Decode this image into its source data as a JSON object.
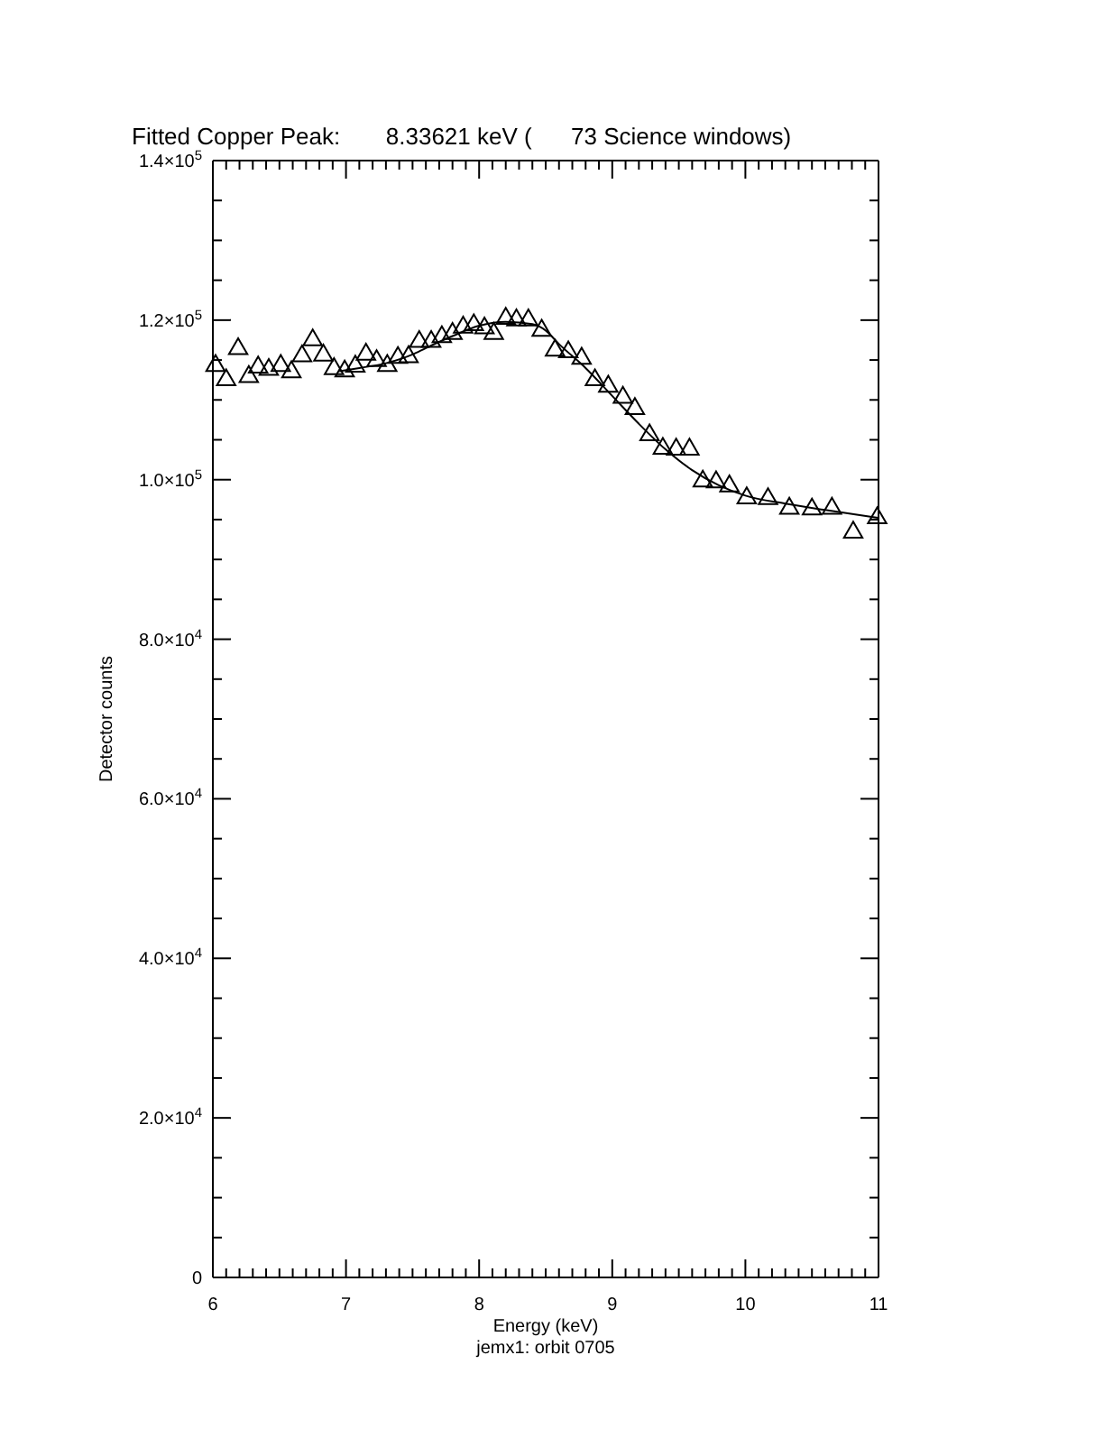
{
  "chart_data": {
    "type": "scatter",
    "title": "Fitted Copper Peak:       8.33621 keV (      73 Science windows)",
    "xlabel": "Energy (keV)",
    "ylabel": "Detector counts",
    "annotations": [
      "jemx1: orbit 0705"
    ],
    "xlim": [
      6,
      11
    ],
    "ylim": [
      0,
      140000
    ],
    "xticks": [
      6,
      {
        "value": 6.1,
        "label": null
      },
      {
        "value": 6.2,
        "label": null
      },
      {
        "value": 6.3,
        "label": null
      },
      {
        "value": 6.4,
        "label": null
      },
      {
        "value": 6.5,
        "label": null
      },
      {
        "value": 6.6,
        "label": null
      },
      {
        "value": 6.7,
        "label": null
      },
      {
        "value": 6.8,
        "label": null
      },
      {
        "value": 6.9,
        "label": null
      },
      7,
      {
        "value": 7.1,
        "label": null
      },
      {
        "value": 7.2,
        "label": null
      },
      {
        "value": 7.3,
        "label": null
      },
      {
        "value": 7.4,
        "label": null
      },
      {
        "value": 7.5,
        "label": null
      },
      {
        "value": 7.6,
        "label": null
      },
      {
        "value": 7.7,
        "label": null
      },
      {
        "value": 7.8,
        "label": null
      },
      {
        "value": 7.9,
        "label": null
      },
      8,
      {
        "value": 8.1,
        "label": null
      },
      {
        "value": 8.2,
        "label": null
      },
      {
        "value": 8.3,
        "label": null
      },
      {
        "value": 8.4,
        "label": null
      },
      {
        "value": 8.5,
        "label": null
      },
      {
        "value": 8.6,
        "label": null
      },
      {
        "value": 8.7,
        "label": null
      },
      {
        "value": 8.8,
        "label": null
      },
      {
        "value": 8.9,
        "label": null
      },
      9,
      {
        "value": 9.1,
        "label": null
      },
      {
        "value": 9.2,
        "label": null
      },
      {
        "value": 9.3,
        "label": null
      },
      {
        "value": 9.4,
        "label": null
      },
      {
        "value": 9.5,
        "label": null
      },
      {
        "value": 9.6,
        "label": null
      },
      {
        "value": 9.7,
        "label": null
      },
      {
        "value": 9.8,
        "label": null
      },
      {
        "value": 9.9,
        "label": null
      },
      10,
      {
        "value": 10.1,
        "label": null
      },
      {
        "value": 10.2,
        "label": null
      },
      {
        "value": 10.3,
        "label": null
      },
      {
        "value": 10.4,
        "label": null
      },
      {
        "value": 10.5,
        "label": null
      },
      {
        "value": 10.6,
        "label": null
      },
      {
        "value": 10.7,
        "label": null
      },
      {
        "value": 10.8,
        "label": null
      },
      {
        "value": 10.9,
        "label": null
      },
      11
    ],
    "yticks": [
      0,
      {
        "value": 5000,
        "label": null
      },
      {
        "value": 10000,
        "label": null
      },
      {
        "value": 15000,
        "label": null
      },
      {
        "value": 20000,
        "label": "2.0×10$^{4}$"
      },
      {
        "value": 25000,
        "label": null
      },
      {
        "value": 30000,
        "label": null
      },
      {
        "value": 35000,
        "label": null
      },
      {
        "value": 40000,
        "label": "4.0×10$^{4}$"
      },
      {
        "value": 45000,
        "label": null
      },
      {
        "value": 50000,
        "label": null
      },
      {
        "value": 55000,
        "label": null
      },
      {
        "value": 60000,
        "label": "6.0×10$^{4}$"
      },
      {
        "value": 65000,
        "label": null
      },
      {
        "value": 70000,
        "label": null
      },
      {
        "value": 75000,
        "label": null
      },
      {
        "value": 80000,
        "label": "8.0×10$^{4}$"
      },
      {
        "value": 85000,
        "label": null
      },
      {
        "value": 90000,
        "label": null
      },
      {
        "value": 95000,
        "label": null
      },
      {
        "value": 100000,
        "label": "1.0×10$^{5}$"
      },
      {
        "value": 105000,
        "label": null
      },
      {
        "value": 110000,
        "label": null
      },
      {
        "value": 115000,
        "label": null
      },
      {
        "value": 120000,
        "label": "1.2×10$^{5}$"
      },
      {
        "value": 125000,
        "label": null
      },
      {
        "value": 130000,
        "label": null
      },
      {
        "value": 135000,
        "label": null
      },
      {
        "value": 140000,
        "label": "1.4×10$^{5}$"
      }
    ],
    "grid": false,
    "series": [
      {
        "color": "#000000",
        "marker": "triangle",
        "x": [
          6.02,
          6.1,
          6.19,
          6.27,
          6.34,
          6.42,
          6.51,
          6.59,
          6.67,
          6.75,
          6.83,
          6.91,
          6.99,
          7.07,
          7.15,
          7.23,
          7.31,
          7.39,
          7.47,
          7.55,
          7.64,
          7.72,
          7.8,
          7.88,
          7.96,
          8.04,
          8.11,
          8.2,
          8.28,
          8.37,
          8.47,
          8.57,
          8.67,
          8.77,
          8.87,
          8.97,
          9.08,
          9.17,
          9.28,
          9.38,
          9.48,
          9.58,
          9.68,
          9.78,
          9.88,
          10.01,
          10.17,
          10.33,
          10.5,
          10.65,
          10.81,
          10.99
        ],
        "values": [
          114300,
          112500,
          116400,
          112900,
          114100,
          113800,
          114300,
          113500,
          115500,
          117500,
          115600,
          113900,
          113600,
          114200,
          115700,
          114900,
          114300,
          115300,
          115400,
          117300,
          117300,
          117900,
          118300,
          119100,
          119400,
          119000,
          118300,
          120200,
          120000,
          120000,
          118700,
          116200,
          116000,
          115200,
          112500,
          111700,
          110300,
          108900,
          105600,
          103900,
          103800,
          103800,
          99800,
          99700,
          99200,
          97700,
          97600,
          96400,
          96300,
          96400,
          93400,
          95200
        ]
      },
      {
        "type": "line",
        "color": "#000000",
        "marker": "none",
        "line_style": "solid",
        "x": [
          6.95,
          7.1,
          7.3,
          7.5,
          7.6,
          7.8,
          8.0,
          8.2,
          8.4,
          8.5,
          8.6,
          8.8,
          9.0,
          9.2,
          9.4,
          9.6,
          9.8,
          10.0,
          10.3,
          10.6,
          11.0
        ],
        "values": [
          113600,
          114000,
          114600,
          115700,
          116500,
          118000,
          119300,
          119800,
          119500,
          118700,
          117000,
          114000,
          110500,
          107000,
          103800,
          101200,
          99300,
          98000,
          97000,
          96200,
          95200
        ]
      }
    ]
  }
}
